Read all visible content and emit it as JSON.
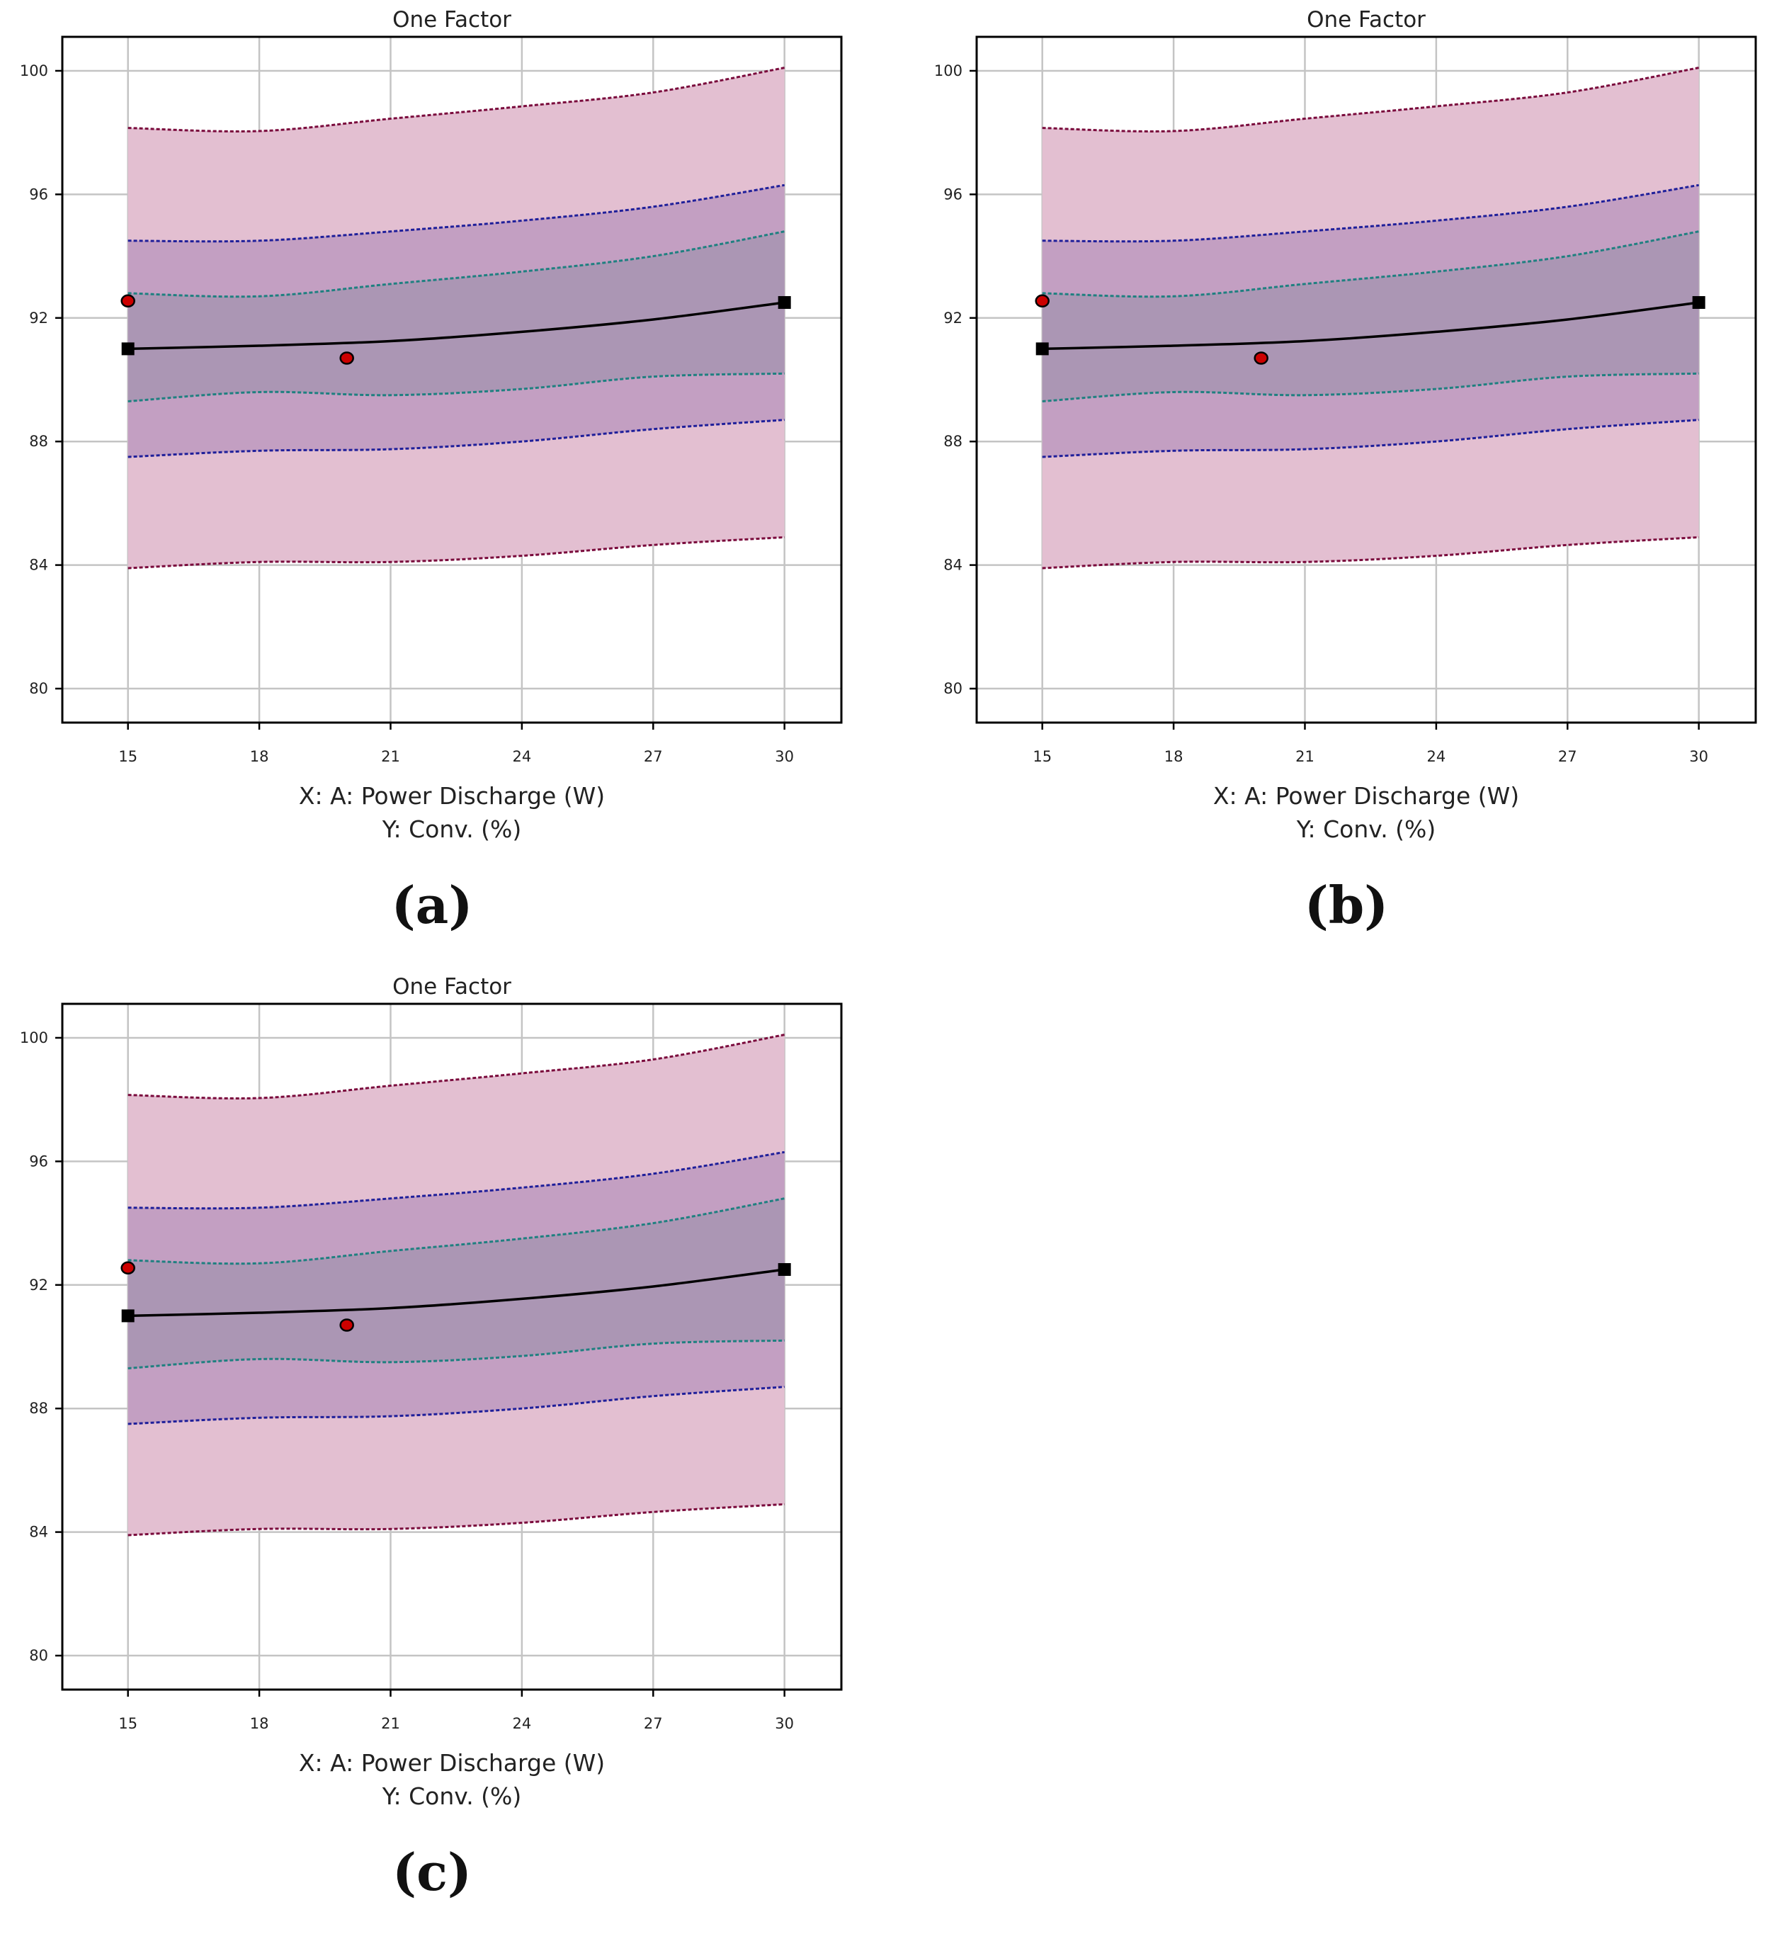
{
  "colors": {
    "pi_band": "#e3bfd1",
    "ci_band": "#c39fc2",
    "lsd_band": "#ab96b4",
    "pi_line": "#7a0a3c",
    "ci_line": "#1f1f9a",
    "lsd_line": "#1f8080",
    "fit_line": "#000000",
    "design_point": "#cc0000",
    "grid": "#c4c4c4"
  },
  "chart_data": [
    {
      "type": "line",
      "panel_label": "(a)",
      "title": "One Factor",
      "xlabel": "X: A: Power Discharge (W)",
      "ylabel": "Y: Conv. (%)",
      "xlim": [
        13.5,
        31.3
      ],
      "ylim": [
        78.9,
        101.1
      ],
      "xticks": [
        15,
        18,
        21,
        24,
        27,
        30
      ],
      "yticks": [
        80,
        84,
        88,
        92,
        96,
        100
      ],
      "x": [
        15,
        18,
        21,
        24,
        27,
        30
      ],
      "series": [
        {
          "name": "fit",
          "values": [
            91.0,
            91.1,
            91.25,
            91.55,
            91.95,
            92.5
          ]
        },
        {
          "name": "lsd_upper",
          "values": [
            92.8,
            92.7,
            93.1,
            93.5,
            94.0,
            94.8
          ]
        },
        {
          "name": "lsd_lower",
          "values": [
            89.3,
            89.6,
            89.5,
            89.7,
            90.1,
            90.2
          ]
        },
        {
          "name": "ci_upper",
          "values": [
            94.5,
            94.5,
            94.8,
            95.15,
            95.6,
            96.3
          ]
        },
        {
          "name": "ci_lower",
          "values": [
            87.5,
            87.7,
            87.75,
            88.0,
            88.4,
            88.7
          ]
        },
        {
          "name": "pi_upper",
          "values": [
            98.15,
            98.05,
            98.45,
            98.85,
            99.3,
            100.1
          ]
        },
        {
          "name": "pi_lower",
          "values": [
            83.9,
            84.1,
            84.1,
            84.3,
            84.65,
            84.9
          ]
        }
      ],
      "design_points": [
        {
          "x": 15,
          "y": 92.55
        },
        {
          "x": 20,
          "y": 90.7
        }
      ],
      "factor_range_markers": [
        {
          "x": 15,
          "y": 91.0
        },
        {
          "x": 30,
          "y": 92.5
        }
      ]
    },
    {
      "type": "line",
      "panel_label": "(b)",
      "title": "One Factor",
      "xlabel": "X: A: Power Discharge (W)",
      "ylabel": "Y: Conv. (%)",
      "xlim": [
        13.5,
        31.3
      ],
      "ylim": [
        78.9,
        101.1
      ],
      "xticks": [
        15,
        18,
        21,
        24,
        27,
        30
      ],
      "yticks": [
        80,
        84,
        88,
        92,
        96,
        100
      ],
      "x": [
        15,
        18,
        21,
        24,
        27,
        30
      ],
      "series": [
        {
          "name": "fit",
          "values": [
            91.0,
            91.1,
            91.25,
            91.55,
            91.95,
            92.5
          ]
        },
        {
          "name": "lsd_upper",
          "values": [
            92.8,
            92.7,
            93.1,
            93.5,
            94.0,
            94.8
          ]
        },
        {
          "name": "lsd_lower",
          "values": [
            89.3,
            89.6,
            89.5,
            89.7,
            90.1,
            90.2
          ]
        },
        {
          "name": "ci_upper",
          "values": [
            94.5,
            94.5,
            94.8,
            95.15,
            95.6,
            96.3
          ]
        },
        {
          "name": "ci_lower",
          "values": [
            87.5,
            87.7,
            87.75,
            88.0,
            88.4,
            88.7
          ]
        },
        {
          "name": "pi_upper",
          "values": [
            98.15,
            98.05,
            98.45,
            98.85,
            99.3,
            100.1
          ]
        },
        {
          "name": "pi_lower",
          "values": [
            83.9,
            84.1,
            84.1,
            84.3,
            84.65,
            84.9
          ]
        }
      ],
      "design_points": [
        {
          "x": 15,
          "y": 92.55
        },
        {
          "x": 20,
          "y": 90.7
        }
      ],
      "factor_range_markers": [
        {
          "x": 15,
          "y": 91.0
        },
        {
          "x": 30,
          "y": 92.5
        }
      ]
    },
    {
      "type": "line",
      "panel_label": "(c)",
      "title": "One Factor",
      "xlabel": "X: A: Power Discharge (W)",
      "ylabel": "Y: Conv. (%)",
      "xlim": [
        13.5,
        31.3
      ],
      "ylim": [
        78.9,
        101.1
      ],
      "xticks": [
        15,
        18,
        21,
        24,
        27,
        30
      ],
      "yticks": [
        80,
        84,
        88,
        92,
        96,
        100
      ],
      "x": [
        15,
        18,
        21,
        24,
        27,
        30
      ],
      "series": [
        {
          "name": "fit",
          "values": [
            91.0,
            91.1,
            91.25,
            91.55,
            91.95,
            92.5
          ]
        },
        {
          "name": "lsd_upper",
          "values": [
            92.8,
            92.7,
            93.1,
            93.5,
            94.0,
            94.8
          ]
        },
        {
          "name": "lsd_lower",
          "values": [
            89.3,
            89.6,
            89.5,
            89.7,
            90.1,
            90.2
          ]
        },
        {
          "name": "ci_upper",
          "values": [
            94.5,
            94.5,
            94.8,
            95.15,
            95.6,
            96.3
          ]
        },
        {
          "name": "ci_lower",
          "values": [
            87.5,
            87.7,
            87.75,
            88.0,
            88.4,
            88.7
          ]
        },
        {
          "name": "pi_upper",
          "values": [
            98.15,
            98.05,
            98.45,
            98.85,
            99.3,
            100.1
          ]
        },
        {
          "name": "pi_lower",
          "values": [
            83.9,
            84.1,
            84.1,
            84.3,
            84.65,
            84.9
          ]
        }
      ],
      "design_points": [
        {
          "x": 15,
          "y": 92.55
        },
        {
          "x": 20,
          "y": 90.7
        }
      ],
      "factor_range_markers": [
        {
          "x": 15,
          "y": 91.0
        },
        {
          "x": 30,
          "y": 92.5
        }
      ]
    }
  ]
}
